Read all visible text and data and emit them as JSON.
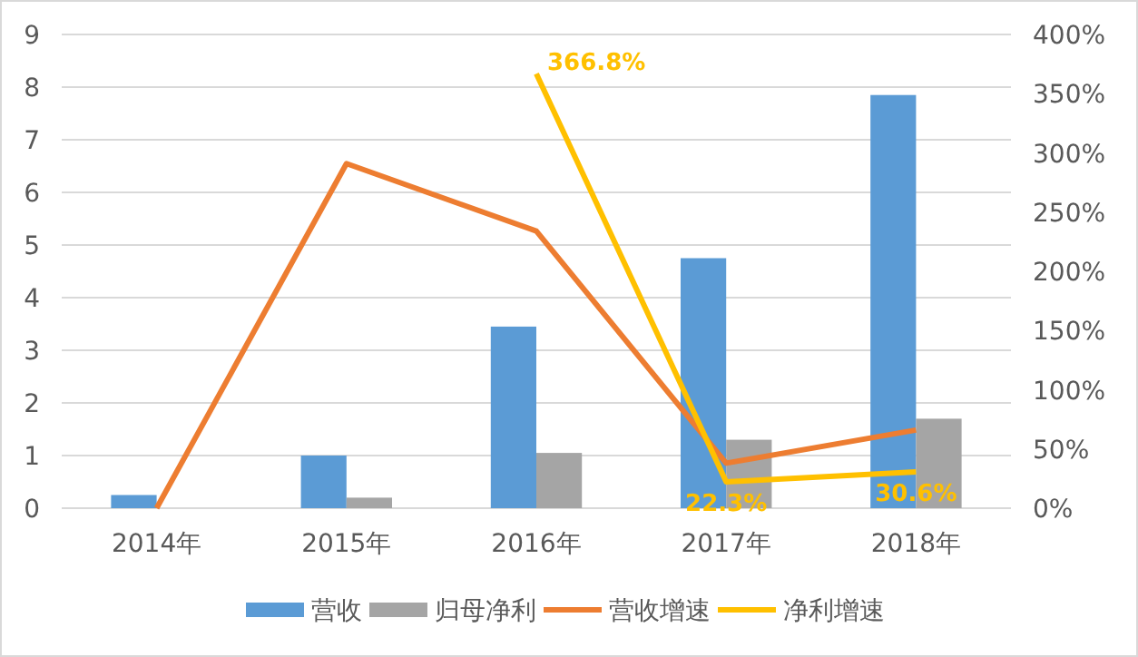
{
  "chart_data": {
    "type": "bar",
    "categories": [
      "2014年",
      "2015年",
      "2016年",
      "2017年",
      "2018年"
    ],
    "series": [
      {
        "name": "营收",
        "color": "#5b9bd5",
        "values": [
          0.25,
          1.0,
          3.45,
          4.75,
          7.85
        ]
      },
      {
        "name": "归母净利",
        "color": "#a5a5a5",
        "values": [
          null,
          0.2,
          1.05,
          1.3,
          1.7
        ]
      },
      {
        "name": "营收增速",
        "type": "line",
        "axis": "y2",
        "color": "#ed7d31",
        "values": [
          0,
          291,
          234,
          38,
          66
        ]
      },
      {
        "name": "净利增速",
        "type": "line",
        "axis": "y2",
        "color": "#ffc000",
        "values": [
          null,
          null,
          366.8,
          22.3,
          30.6
        ],
        "value_labels": [
          null,
          null,
          "366.8%",
          "22.3%",
          "30.6%"
        ]
      }
    ],
    "ylim": [
      0,
      9
    ],
    "yticks": [
      0,
      1,
      2,
      3,
      4,
      5,
      6,
      7,
      8,
      9
    ],
    "y2lim": [
      0,
      400
    ],
    "y2ticks": [
      {
        "value": 0,
        "label": "0%"
      },
      {
        "value": 50,
        "label": "50%"
      },
      {
        "value": 100,
        "label": "100%"
      },
      {
        "value": 150,
        "label": "150%"
      },
      {
        "value": 200,
        "label": "200%"
      },
      {
        "value": 250,
        "label": "250%"
      },
      {
        "value": 300,
        "label": "300%"
      },
      {
        "value": 350,
        "label": "350%"
      },
      {
        "value": 400,
        "label": "400%"
      }
    ],
    "grid": "y",
    "legend": "bottom",
    "marker": "none",
    "line_style": "solid"
  }
}
